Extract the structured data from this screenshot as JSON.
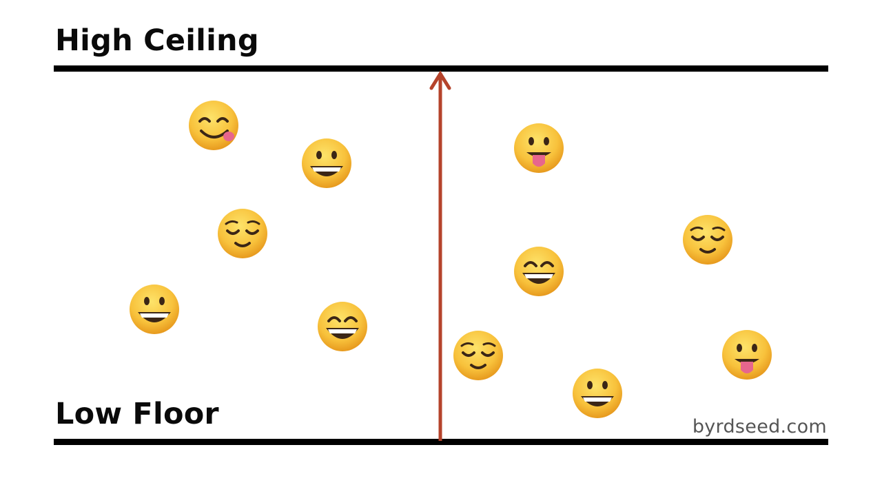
{
  "labels": {
    "ceiling": "High Ceiling",
    "floor": "Low Floor"
  },
  "watermark": "byrdseed.com",
  "colors": {
    "line": "#000000",
    "arrow": "#b5432b",
    "face": "#f8c23c",
    "face_dark": "#e79a1e",
    "feature": "#3b2616",
    "tongue": "#e7668d"
  },
  "emojis": [
    "yum-icon",
    "grinning-icon",
    "relieved-icon",
    "grinning-icon",
    "grin-icon",
    "tongue-icon",
    "relieved-icon",
    "grin-icon",
    "relieved-icon",
    "grinning-icon",
    "tongue-icon"
  ]
}
